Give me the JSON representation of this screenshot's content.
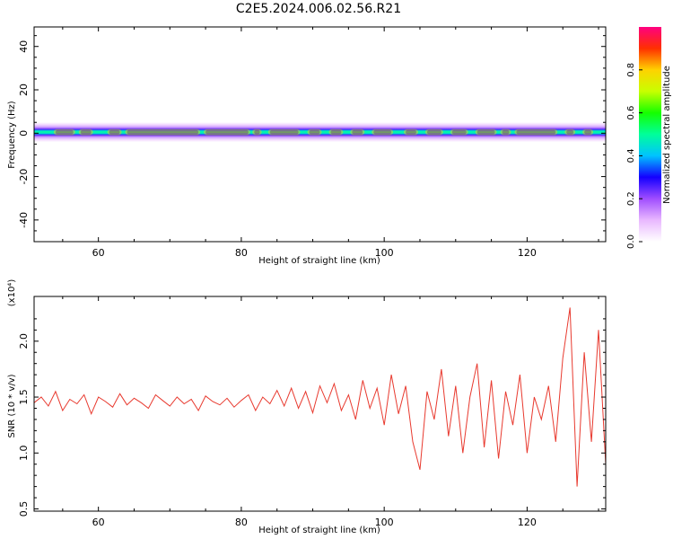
{
  "figure": {
    "title": "C2E5.2024.006.02.56.R21"
  },
  "colors": {
    "signal": "#e8392e",
    "axes": "#000000",
    "colormap": [
      "#ffffff",
      "#e9b8ff",
      "#a04dff",
      "#1400ff",
      "#00c3ff",
      "#00ff9a",
      "#15ff00",
      "#c8ff00",
      "#ffd200",
      "#ff3000",
      "#ff0080"
    ]
  },
  "chart_data": [
    {
      "type": "heatmap",
      "xlabel": "Height of straight line (km)",
      "ylabel": "Frequency (Hz)",
      "xlim": [
        51,
        131
      ],
      "ylim": [
        -50,
        49
      ],
      "xticks": [
        60,
        80,
        100,
        120
      ],
      "yticks": [
        -40,
        -20,
        0,
        20,
        40
      ],
      "colorbar": {
        "label": "Normalized spectral amplitude",
        "range": [
          0,
          1
        ],
        "ticks": [
          "0.0",
          "0.2",
          "0.4",
          "0.6",
          "0.8"
        ]
      },
      "band": {
        "center_freq": 0.5,
        "bright_segments": [
          [
            54,
            56.5
          ],
          [
            57.5,
            59
          ],
          [
            61.5,
            63
          ],
          [
            64,
            74
          ],
          [
            75,
            81
          ],
          [
            81.8,
            82.6
          ],
          [
            84,
            88
          ],
          [
            89.5,
            91
          ],
          [
            92.5,
            94
          ],
          [
            95.5,
            97
          ],
          [
            98.5,
            101
          ],
          [
            103,
            104.5
          ],
          [
            106,
            108
          ],
          [
            109.5,
            111.5
          ],
          [
            113,
            115.5
          ],
          [
            116.5,
            117.5
          ],
          [
            118.5,
            124
          ],
          [
            125.5,
            126.5
          ],
          [
            128,
            129
          ]
        ]
      }
    },
    {
      "type": "line",
      "xlabel": "Height of straight line (km)",
      "ylabel": "SNR (10 * v/v)",
      "scale_label": "(x10⁴)",
      "xlim": [
        51,
        131
      ],
      "ylim": [
        0.48,
        2.4
      ],
      "xticks": [
        60,
        80,
        100,
        120
      ],
      "yticks": [
        0.5,
        1.0,
        1.5,
        2.0
      ],
      "series": [
        {
          "x": [
            51,
            52,
            53,
            54,
            55,
            56,
            57,
            58,
            59,
            60,
            61,
            62,
            63,
            64,
            65,
            66,
            67,
            68,
            69,
            70,
            71,
            72,
            73,
            74,
            75,
            76,
            77,
            78,
            79,
            80,
            81,
            82,
            83,
            84,
            85,
            86,
            87,
            88,
            89,
            90,
            91,
            92,
            93,
            94,
            95,
            96,
            97,
            98,
            99,
            100,
            101,
            102,
            103,
            104,
            105,
            106,
            107,
            108,
            109,
            110,
            111,
            112,
            113,
            114,
            115,
            116,
            117,
            118,
            119,
            120,
            121,
            122,
            123,
            124,
            125,
            126,
            127,
            128,
            129,
            130,
            131
          ],
          "y": [
            1.45,
            1.5,
            1.42,
            1.55,
            1.38,
            1.48,
            1.44,
            1.52,
            1.35,
            1.5,
            1.46,
            1.41,
            1.53,
            1.43,
            1.49,
            1.45,
            1.4,
            1.52,
            1.47,
            1.42,
            1.5,
            1.44,
            1.48,
            1.38,
            1.51,
            1.46,
            1.43,
            1.49,
            1.41,
            1.47,
            1.52,
            1.38,
            1.5,
            1.44,
            1.56,
            1.42,
            1.58,
            1.4,
            1.55,
            1.36,
            1.6,
            1.45,
            1.62,
            1.38,
            1.52,
            1.3,
            1.65,
            1.4,
            1.58,
            1.25,
            1.7,
            1.35,
            1.6,
            1.1,
            0.85,
            1.55,
            1.3,
            1.75,
            1.15,
            1.6,
            1.0,
            1.5,
            1.8,
            1.05,
            1.65,
            0.95,
            1.55,
            1.25,
            1.7,
            1.0,
            1.5,
            1.3,
            1.6,
            1.1,
            1.85,
            2.3,
            0.7,
            1.9,
            1.1,
            2.1,
            0.9
          ]
        }
      ]
    }
  ]
}
